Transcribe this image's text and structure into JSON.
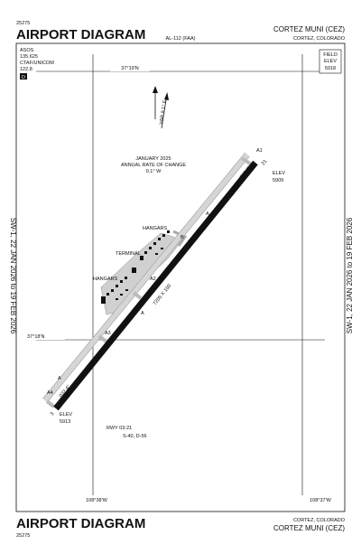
{
  "header": {
    "chart_number": "25275",
    "title": "AIRPORT DIAGRAM",
    "procedure_id": "AL-112 (FAA)",
    "airport": "CORTEZ MUNI (CEZ)",
    "location": "CORTEZ, COLORADO"
  },
  "frequencies": [
    "ASOS",
    "135.625",
    "CTAF/UNICOM",
    "122.8"
  ],
  "d_symbol": "D",
  "field_elevation": {
    "label1": "FIELD",
    "label2": "ELEV",
    "value": "5918"
  },
  "latitudes": [
    "37°19'N",
    "37°18'N"
  ],
  "longitudes": [
    "108°38'W",
    "108°37'W"
  ],
  "variation": {
    "var": "VAR 9.1° E",
    "date": "JANUARY 2025",
    "label": "ANNUAL RATE OF CHANGE",
    "rate": "0.1° W"
  },
  "runway": {
    "end_21": "21",
    "end_3": "3",
    "heading_21": "212.4°",
    "heading_03": "032.4°",
    "elev_21": [
      "ELEV",
      "5909"
    ],
    "elev_3": [
      "ELEV",
      "5913"
    ],
    "dimensions": "7205 X 100",
    "designation": "RWY 03-21",
    "strength": "S-40, D-56"
  },
  "taxiway_labels": [
    "A",
    "A1",
    "A2",
    "A3",
    "A4",
    "B"
  ],
  "labels": [
    "HANGARS",
    "TERMINAL",
    "HANGARS"
  ],
  "effective_dates": "SW-1,  22 JAN 2026  to  19 FEB 2026"
}
